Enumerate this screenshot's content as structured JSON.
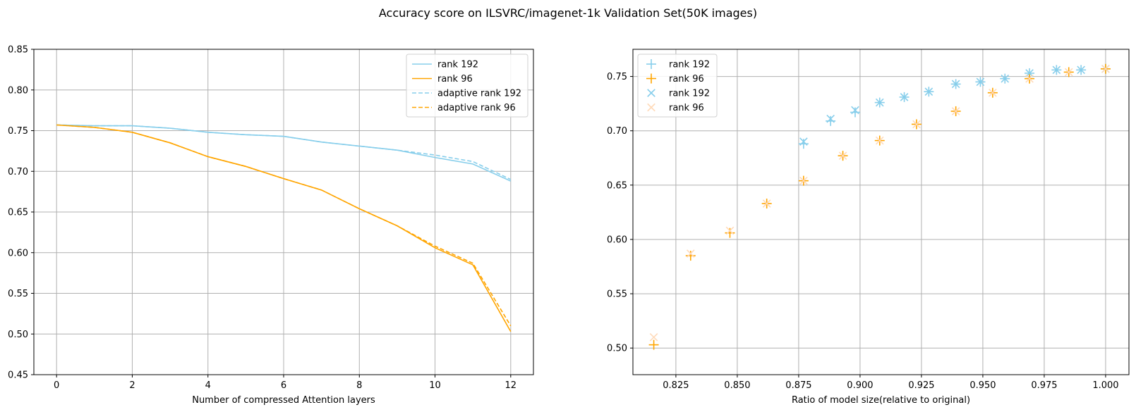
{
  "figure": {
    "title": "Accuracy score on ILSVRC/imagenet-1k Validation Set(50K images)"
  },
  "colors": {
    "rank192": "#87CEEB",
    "rank96": "#FFA500",
    "rank96_light": "#FFDAB9",
    "grid": "#b0b0b0"
  },
  "chart_data": [
    {
      "type": "line",
      "title": "",
      "xlabel": "Number of compressed Attention layers",
      "ylabel": "",
      "xlim": [
        -0.6,
        12.6
      ],
      "ylim": [
        0.45,
        0.85
      ],
      "xticks": [
        0,
        2,
        4,
        6,
        8,
        10,
        12
      ],
      "xtick_labels": [
        "0",
        "2",
        "4",
        "6",
        "8",
        "10",
        "12"
      ],
      "yticks": [
        0.45,
        0.5,
        0.55,
        0.6,
        0.65,
        0.7,
        0.75,
        0.8,
        0.85
      ],
      "ytick_labels": [
        "0.45",
        "0.50",
        "0.55",
        "0.60",
        "0.65",
        "0.70",
        "0.75",
        "0.80",
        "0.85"
      ],
      "grid": true,
      "legend_position": "top-right",
      "x": [
        0,
        1,
        2,
        3,
        4,
        5,
        6,
        7,
        8,
        9,
        10,
        11,
        12
      ],
      "series": [
        {
          "name": "rank 192",
          "style": "solid",
          "color": "#87CEEB",
          "values": [
            0.757,
            0.756,
            0.756,
            0.753,
            0.748,
            0.745,
            0.743,
            0.736,
            0.731,
            0.726,
            0.717,
            0.709,
            0.688
          ]
        },
        {
          "name": "rank 96",
          "style": "solid",
          "color": "#FFA500",
          "values": [
            0.757,
            0.754,
            0.748,
            0.735,
            0.718,
            0.706,
            0.691,
            0.677,
            0.654,
            0.633,
            0.606,
            0.585,
            0.503
          ]
        },
        {
          "name": "adaptive rank 192",
          "style": "dashed",
          "color": "#87CEEB",
          "values": [
            0.757,
            0.756,
            0.756,
            0.753,
            0.748,
            0.745,
            0.743,
            0.736,
            0.731,
            0.726,
            0.72,
            0.712,
            0.69
          ]
        },
        {
          "name": "adaptive rank 96",
          "style": "dashed",
          "color": "#FFA500",
          "values": [
            0.757,
            0.754,
            0.748,
            0.735,
            0.718,
            0.706,
            0.691,
            0.677,
            0.654,
            0.633,
            0.608,
            0.587,
            0.51
          ]
        }
      ]
    },
    {
      "type": "scatter",
      "title": "",
      "xlabel": "Ratio of model size(relative to original)",
      "ylabel": "",
      "xlim": [
        0.8075,
        1.0095
      ],
      "ylim": [
        0.4755,
        0.775
      ],
      "xticks": [
        0.825,
        0.85,
        0.875,
        0.9,
        0.925,
        0.95,
        0.975,
        1.0
      ],
      "xtick_labels": [
        "0.825",
        "0.850",
        "0.875",
        "0.900",
        "0.925",
        "0.950",
        "0.975",
        "1.000"
      ],
      "yticks": [
        0.5,
        0.55,
        0.6,
        0.65,
        0.7,
        0.75
      ],
      "ytick_labels": [
        "0.50",
        "0.55",
        "0.60",
        "0.65",
        "0.70",
        "0.75"
      ],
      "grid": true,
      "legend_position": "top-left",
      "series": [
        {
          "name": "rank 192",
          "marker": "plus",
          "color": "#87CEEB",
          "x": [
            1.0,
            0.99,
            0.98,
            0.969,
            0.959,
            0.949,
            0.939,
            0.928,
            0.918,
            0.908,
            0.898,
            0.888,
            0.877
          ],
          "y": [
            0.757,
            0.756,
            0.756,
            0.753,
            0.748,
            0.745,
            0.743,
            0.736,
            0.731,
            0.726,
            0.717,
            0.709,
            0.688
          ]
        },
        {
          "name": "rank 96",
          "marker": "plus",
          "color": "#FFA500",
          "x": [
            1.0,
            0.985,
            0.969,
            0.954,
            0.939,
            0.923,
            0.908,
            0.893,
            0.877,
            0.862,
            0.847,
            0.831,
            0.816
          ],
          "y": [
            0.757,
            0.754,
            0.748,
            0.735,
            0.718,
            0.706,
            0.691,
            0.677,
            0.654,
            0.633,
            0.606,
            0.585,
            0.503
          ]
        },
        {
          "name": "rank 192",
          "marker": "x",
          "color": "#87CEEB",
          "x": [
            1.0,
            0.99,
            0.98,
            0.969,
            0.959,
            0.949,
            0.939,
            0.928,
            0.918,
            0.908,
            0.898,
            0.888,
            0.877
          ],
          "y": [
            0.757,
            0.756,
            0.756,
            0.753,
            0.748,
            0.745,
            0.743,
            0.736,
            0.731,
            0.726,
            0.719,
            0.711,
            0.69
          ]
        },
        {
          "name": "rank 96",
          "marker": "x",
          "color": "#FFDAB9",
          "x": [
            1.0,
            0.985,
            0.969,
            0.954,
            0.939,
            0.923,
            0.908,
            0.893,
            0.877,
            0.862,
            0.847,
            0.831,
            0.816
          ],
          "y": [
            0.757,
            0.754,
            0.748,
            0.735,
            0.718,
            0.706,
            0.691,
            0.677,
            0.654,
            0.633,
            0.608,
            0.587,
            0.51
          ]
        }
      ]
    }
  ]
}
